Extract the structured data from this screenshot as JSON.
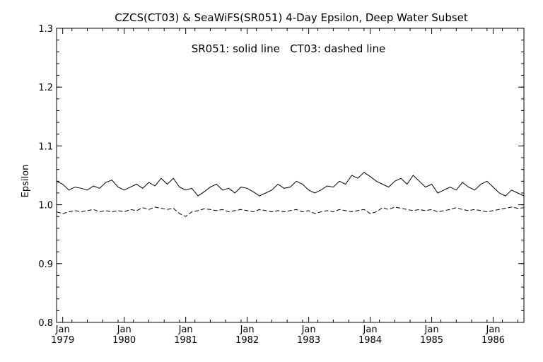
{
  "chart_data": {
    "type": "line",
    "title": "CZCS(CT03) & SeaWiFS(SR051) 4-Day Epsilon, Deep Water Subset",
    "annotation": "SR051: solid line   CT03: dashed line",
    "xlabel": "",
    "ylabel": "Epsilon",
    "x_unit": "decimal year",
    "xlim": [
      1978.9,
      1986.5
    ],
    "ylim": [
      0.8,
      1.3
    ],
    "grid": false,
    "legend": "none",
    "x_tick_labels": [
      {
        "value": 1979.0,
        "month": "Jan",
        "year": "1979"
      },
      {
        "value": 1980.0,
        "month": "Jan",
        "year": "1980"
      },
      {
        "value": 1981.0,
        "month": "Jan",
        "year": "1981"
      },
      {
        "value": 1982.0,
        "month": "Jan",
        "year": "1982"
      },
      {
        "value": 1983.0,
        "month": "Jan",
        "year": "1983"
      },
      {
        "value": 1984.0,
        "month": "Jan",
        "year": "1984"
      },
      {
        "value": 1985.0,
        "month": "Jan",
        "year": "1985"
      },
      {
        "value": 1986.0,
        "month": "Jan",
        "year": "1986"
      }
    ],
    "y_ticks": [
      {
        "value": 0.8,
        "label": "0.8"
      },
      {
        "value": 0.9,
        "label": "0.9"
      },
      {
        "value": 1.0,
        "label": "1.0"
      },
      {
        "value": 1.1,
        "label": "1.1"
      },
      {
        "value": 1.2,
        "label": "1.2"
      },
      {
        "value": 1.3,
        "label": "1.3"
      }
    ],
    "series": [
      {
        "id": "SR051",
        "style": "solid",
        "color": "#000000",
        "x": [
          1978.9,
          1979.0,
          1979.1,
          1979.2,
          1979.3,
          1979.4,
          1979.5,
          1979.6,
          1979.7,
          1979.8,
          1979.9,
          1980.0,
          1980.1,
          1980.2,
          1980.3,
          1980.4,
          1980.5,
          1980.6,
          1980.7,
          1980.8,
          1980.9,
          1981.0,
          1981.1,
          1981.2,
          1981.3,
          1981.4,
          1981.5,
          1981.6,
          1981.7,
          1981.8,
          1981.9,
          1982.0,
          1982.1,
          1982.2,
          1982.3,
          1982.4,
          1982.5,
          1982.6,
          1982.7,
          1982.8,
          1982.9,
          1983.0,
          1983.1,
          1983.2,
          1983.3,
          1983.4,
          1983.5,
          1983.6,
          1983.7,
          1983.8,
          1983.9,
          1984.0,
          1984.1,
          1984.2,
          1984.3,
          1984.4,
          1984.5,
          1984.6,
          1984.7,
          1984.8,
          1984.9,
          1985.0,
          1985.1,
          1985.2,
          1985.3,
          1985.4,
          1985.5,
          1985.6,
          1985.7,
          1985.8,
          1985.9,
          1986.0,
          1986.1,
          1986.2,
          1986.3,
          1986.4,
          1986.5
        ],
        "values": [
          1.04,
          1.035,
          1.025,
          1.03,
          1.028,
          1.025,
          1.032,
          1.028,
          1.038,
          1.042,
          1.03,
          1.025,
          1.03,
          1.035,
          1.028,
          1.038,
          1.032,
          1.045,
          1.035,
          1.045,
          1.03,
          1.025,
          1.028,
          1.015,
          1.022,
          1.03,
          1.035,
          1.025,
          1.028,
          1.02,
          1.03,
          1.028,
          1.022,
          1.015,
          1.02,
          1.025,
          1.035,
          1.028,
          1.03,
          1.04,
          1.035,
          1.025,
          1.02,
          1.025,
          1.032,
          1.03,
          1.04,
          1.035,
          1.05,
          1.045,
          1.055,
          1.048,
          1.04,
          1.035,
          1.03,
          1.04,
          1.045,
          1.035,
          1.05,
          1.04,
          1.03,
          1.035,
          1.02,
          1.025,
          1.03,
          1.025,
          1.038,
          1.03,
          1.025,
          1.035,
          1.04,
          1.03,
          1.02,
          1.015,
          1.025,
          1.02,
          1.015
        ]
      },
      {
        "id": "CT03",
        "style": "dashed",
        "color": "#000000",
        "x": [
          1978.9,
          1979.0,
          1979.1,
          1979.2,
          1979.3,
          1979.4,
          1979.5,
          1979.6,
          1979.7,
          1979.8,
          1979.9,
          1980.0,
          1980.1,
          1980.2,
          1980.3,
          1980.4,
          1980.5,
          1980.6,
          1980.7,
          1980.8,
          1980.9,
          1981.0,
          1981.1,
          1981.2,
          1981.3,
          1981.4,
          1981.5,
          1981.6,
          1981.7,
          1981.8,
          1981.9,
          1982.0,
          1982.1,
          1982.2,
          1982.3,
          1982.4,
          1982.5,
          1982.6,
          1982.7,
          1982.8,
          1982.9,
          1983.0,
          1983.1,
          1983.2,
          1983.3,
          1983.4,
          1983.5,
          1983.6,
          1983.7,
          1983.8,
          1983.9,
          1984.0,
          1984.1,
          1984.2,
          1984.3,
          1984.4,
          1984.5,
          1984.6,
          1984.7,
          1984.8,
          1984.9,
          1985.0,
          1985.1,
          1985.2,
          1985.3,
          1985.4,
          1985.5,
          1985.6,
          1985.7,
          1985.8,
          1985.9,
          1986.0,
          1986.1,
          1986.2,
          1986.3,
          1986.4,
          1986.5
        ],
        "values": [
          0.988,
          0.985,
          0.988,
          0.99,
          0.988,
          0.99,
          0.992,
          0.988,
          0.99,
          0.988,
          0.99,
          0.988,
          0.992,
          0.99,
          0.995,
          0.992,
          0.996,
          0.994,
          0.992,
          0.994,
          0.985,
          0.98,
          0.988,
          0.99,
          0.993,
          0.992,
          0.99,
          0.992,
          0.988,
          0.99,
          0.992,
          0.99,
          0.988,
          0.992,
          0.99,
          0.988,
          0.99,
          0.988,
          0.99,
          0.992,
          0.988,
          0.99,
          0.985,
          0.988,
          0.99,
          0.988,
          0.992,
          0.99,
          0.988,
          0.99,
          0.992,
          0.985,
          0.988,
          0.995,
          0.992,
          0.996,
          0.994,
          0.992,
          0.99,
          0.992,
          0.99,
          0.992,
          0.988,
          0.99,
          0.992,
          0.995,
          0.992,
          0.99,
          0.992,
          0.99,
          0.988,
          0.99,
          0.992,
          0.994,
          0.996,
          0.994,
          0.995
        ]
      }
    ]
  }
}
